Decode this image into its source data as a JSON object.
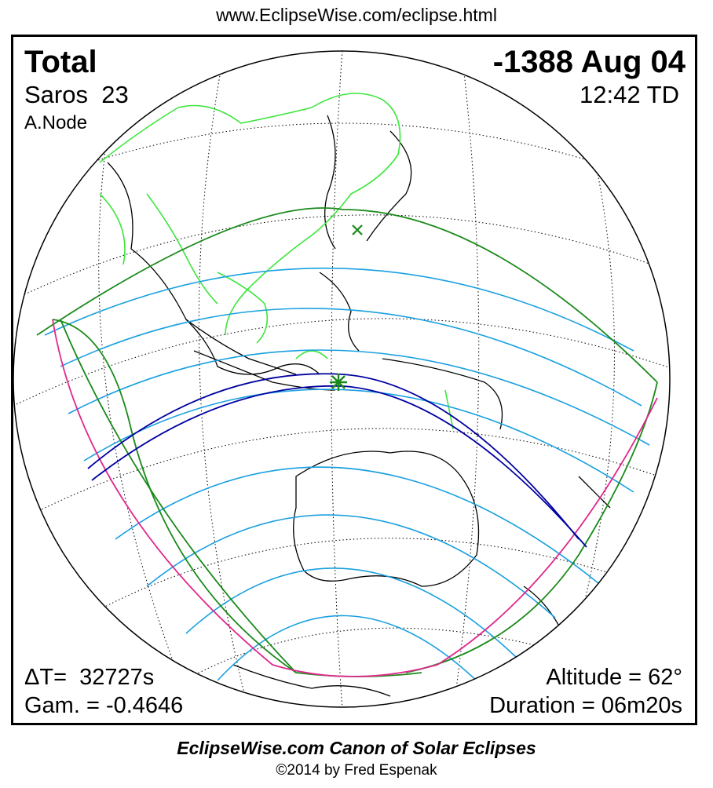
{
  "header": {
    "url": "www.EclipseWise.com/eclipse.html"
  },
  "eclipse": {
    "type": "Total",
    "date": "-1388 Aug 04",
    "saros_label": "Saros",
    "saros_number": "23",
    "time": "12:42 TD",
    "node": "A.Node",
    "delta_t": "ΔT=  32727s",
    "gamma": "Gam. = -0.4646",
    "altitude": "Altitude = 62°",
    "duration": "Duration = 06m20s"
  },
  "footer": {
    "canon": "EclipseWise.com Canon of Solar Eclipses",
    "copyright": "©2014 by Fred Espenak"
  },
  "colors": {
    "coastline": "#000000",
    "china_borders": "#3ce63c",
    "penumbra_limit": "#1a8a1a",
    "partial_lines": "#1aa0e0",
    "totality_path": "#0000a0",
    "rise_set_curve": "#e0288c",
    "night_shading": "#c0c0c0",
    "greatest_eclipse_marker": "#1a8a1a",
    "subsolar_marker": "#1a8a1a"
  },
  "icons": {
    "greatest_eclipse": "star-icon",
    "subsolar_point": "cross-x-icon"
  }
}
